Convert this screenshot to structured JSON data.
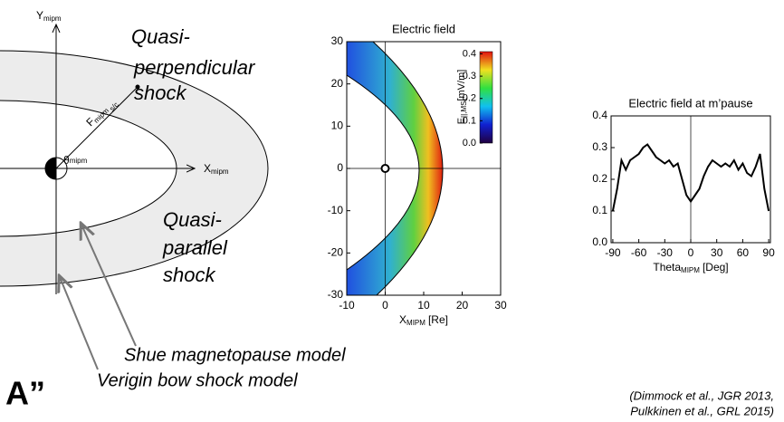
{
  "diagram": {
    "y_axis": {
      "label": "Y",
      "sub": "mipm"
    },
    "x_axis": {
      "label": "X",
      "sub": "mipm"
    },
    "distance": {
      "label": "F",
      "sub": "mipm",
      "sc": "s/c"
    },
    "angle": {
      "label": "θ",
      "sub": "mipm"
    },
    "quasi_perp": [
      "Quasi-",
      "perpendicular",
      "shock"
    ],
    "quasi_par": [
      "Quasi-",
      "parallel",
      "shock"
    ],
    "shue": "Shue magnetopause model",
    "verigin": "Verigin bow shock model",
    "logo": "A”"
  },
  "chart_data": [
    {
      "type": "heatmap",
      "title": "Electric field",
      "xlabel": "X",
      "xlabel_sub": "MIPM",
      "xlabel_unit": "[Re]",
      "xlim": [
        -10,
        30
      ],
      "xticks": [
        -10,
        0,
        10,
        20,
        30
      ],
      "ylim": [
        -30,
        30
      ],
      "yticks": [
        30,
        20,
        10,
        0,
        -10,
        -20,
        -30
      ],
      "colorbar": {
        "label": "E",
        "label_sub": "||,MS",
        "label_unit": "[mV/m]",
        "clim": [
          0,
          0.41
        ],
        "ticks": [
          0.4,
          0.3,
          0.2,
          0.1,
          {
            "value": 0,
            "label": "0.0"
          }
        ]
      }
    },
    {
      "type": "line",
      "title": "Electric field at m’pause",
      "xlabel": "Theta",
      "xlabel_sub": "MIPM",
      "xlabel_unit": "[Deg]",
      "xlim": [
        -92,
        92
      ],
      "xticks": [
        -90,
        -60,
        -30,
        0,
        30,
        60,
        90
      ],
      "ylim": [
        0,
        0.4
      ],
      "yticks": [
        {
          "value": 0,
          "label": "0.0"
        },
        0.1,
        0.2,
        0.3,
        0.4
      ],
      "color": "#000000",
      "x": [
        -90,
        -85,
        -80,
        -75,
        -70,
        -65,
        -60,
        -55,
        -50,
        -45,
        -40,
        -35,
        -30,
        -25,
        -20,
        -15,
        -10,
        -5,
        0,
        5,
        10,
        15,
        20,
        25,
        30,
        35,
        40,
        45,
        50,
        55,
        60,
        65,
        70,
        75,
        80,
        85,
        90
      ],
      "values": [
        0.1,
        0.17,
        0.26,
        0.23,
        0.26,
        0.27,
        0.28,
        0.3,
        0.31,
        0.29,
        0.27,
        0.26,
        0.25,
        0.26,
        0.24,
        0.25,
        0.2,
        0.15,
        0.13,
        0.15,
        0.17,
        0.21,
        0.24,
        0.26,
        0.25,
        0.24,
        0.25,
        0.24,
        0.26,
        0.23,
        0.25,
        0.22,
        0.21,
        0.24,
        0.28,
        0.17,
        0.1
      ]
    }
  ],
  "citation": [
    "(Dimmock et al., JGR 2013,",
    "Pulkkinen et al., GRL 2015)"
  ]
}
